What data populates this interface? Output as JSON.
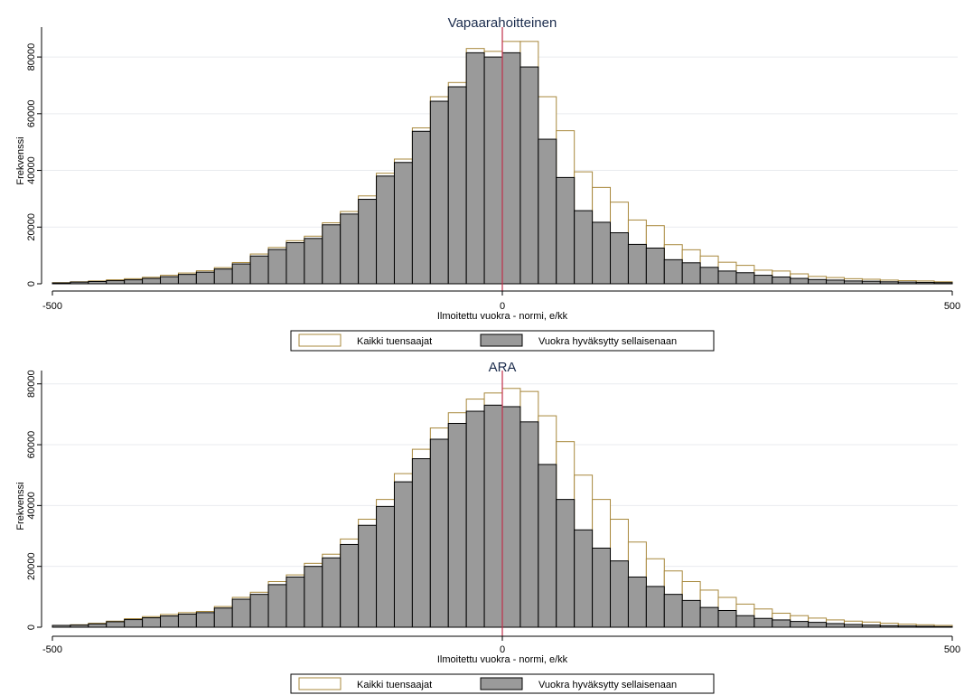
{
  "chart_data": [
    {
      "type": "bar",
      "title": "Vapaarahoitteinen",
      "xlabel": "Ilmoitettu vuokra - normi, e/kk",
      "ylabel": "Frekvenssi",
      "xlim": [
        -500,
        500
      ],
      "ylim": [
        0,
        88000
      ],
      "xticks": [
        -500,
        0,
        500
      ],
      "yticks": [
        0,
        20000,
        40000,
        60000,
        80000
      ],
      "grid": true,
      "bin_width": 20,
      "bin_start": -500,
      "reference_line_x": 0,
      "legend": "bottom",
      "series": [
        {
          "name": "Kaikki tuensaajat",
          "values": [
            400,
            700,
            1000,
            1400,
            1800,
            2300,
            3000,
            3800,
            4600,
            5700,
            7500,
            10500,
            12800,
            15200,
            16800,
            21500,
            25500,
            31000,
            39000,
            44000,
            55000,
            66000,
            71000,
            83000,
            82000,
            85500,
            85500,
            66000,
            54000,
            39500,
            34000,
            28800,
            22500,
            20500,
            13800,
            12000,
            9800,
            7600,
            6500,
            4800,
            4500,
            3500,
            2600,
            2200,
            1800,
            1600,
            1300,
            1100,
            1000,
            700
          ]
        },
        {
          "name": "Vuokra hyväksytty sellaisenaan",
          "values": [
            300,
            600,
            800,
            1100,
            1400,
            1900,
            2500,
            3300,
            4100,
            5200,
            7000,
            9800,
            12100,
            14500,
            16000,
            20800,
            24600,
            29800,
            38000,
            42800,
            53800,
            64400,
            69500,
            81500,
            80000,
            81500,
            76500,
            51000,
            37500,
            25800,
            21700,
            18000,
            13900,
            12600,
            8500,
            7400,
            5800,
            4500,
            3900,
            3000,
            2400,
            1900,
            1500,
            1300,
            1000,
            900,
            700,
            600,
            500,
            400
          ]
        }
      ]
    },
    {
      "type": "bar",
      "title": "ARA",
      "xlabel": "Ilmoitettu vuokra - normi, e/kk",
      "ylabel": "Frekvenssi",
      "xlim": [
        -500,
        500
      ],
      "ylim": [
        0,
        82000
      ],
      "xticks": [
        -500,
        0,
        500
      ],
      "yticks": [
        0,
        20000,
        40000,
        60000,
        80000
      ],
      "grid": true,
      "bin_width": 20,
      "bin_start": -500,
      "reference_line_x": 0,
      "legend": "bottom",
      "series": [
        {
          "name": "Kaikki tuensaajat",
          "values": [
            600,
            800,
            1300,
            2000,
            2800,
            3500,
            4200,
            4800,
            5200,
            6800,
            9800,
            11500,
            15000,
            17200,
            21000,
            24000,
            29000,
            35500,
            42000,
            50500,
            58500,
            65500,
            70500,
            75000,
            77000,
            78500,
            77500,
            69500,
            61000,
            50000,
            42000,
            35500,
            28000,
            22500,
            18500,
            15000,
            12200,
            9800,
            7600,
            6000,
            4600,
            3800,
            3000,
            2400,
            2000,
            1700,
            1300,
            1000,
            800,
            600
          ]
        },
        {
          "name": "Vuokra hyväksytty sellaisenaan",
          "values": [
            600,
            700,
            1100,
            1800,
            2500,
            3100,
            3700,
            4300,
            4800,
            6300,
            9200,
            10800,
            14000,
            16500,
            20000,
            22800,
            27200,
            33500,
            39700,
            47800,
            55400,
            61800,
            67000,
            71000,
            73000,
            72500,
            67500,
            53500,
            42000,
            32000,
            26000,
            21800,
            16500,
            13400,
            10800,
            8800,
            6500,
            5500,
            3800,
            2900,
            2400,
            1900,
            1600,
            1200,
            900,
            700,
            500,
            400,
            300,
            200
          ]
        }
      ]
    }
  ]
}
